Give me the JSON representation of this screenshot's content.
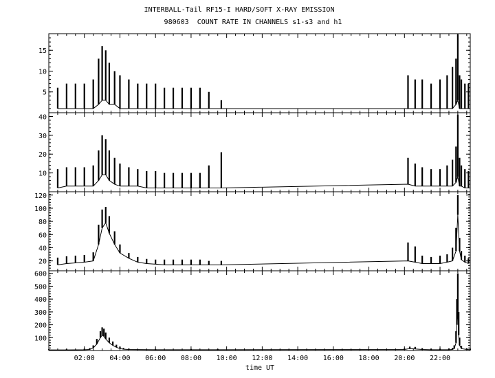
{
  "chart_data": {
    "type": "line",
    "title": "INTERBALL-Tail RF15-I HARD/SOFT X-RAY EMISSION",
    "subtitle": "980603  COUNT RATE IN CHANNELS s1-s3 and h1",
    "xlabel": "time UT",
    "x_unit": "hours UT",
    "xlim": [
      0.0,
      23.7
    ],
    "x_tick_values": [
      2,
      4,
      6,
      8,
      10,
      12,
      14,
      16,
      18,
      20,
      22
    ],
    "x_tick_labels": [
      "02:00",
      "04:00",
      "06:00",
      "08:00",
      "10:00",
      "12:00",
      "14:00",
      "16:00",
      "18:00",
      "20:00",
      "22:00"
    ],
    "panels": [
      {
        "name": "",
        "ylim": [
          0,
          19
        ],
        "yticks": [
          5,
          10,
          15
        ],
        "x": [
          0.5,
          1.0,
          1.5,
          2.0,
          2.5,
          2.8,
          3.0,
          3.2,
          3.4,
          3.7,
          4.0,
          4.5,
          5.0,
          5.5,
          6.0,
          6.5,
          7.0,
          7.5,
          8.0,
          8.5,
          9.0,
          9.7,
          20.2,
          20.6,
          21.0,
          21.5,
          22.0,
          22.4,
          22.7,
          22.9,
          23.0,
          23.1,
          23.2,
          23.4,
          23.6
        ],
        "low": [
          1,
          1,
          1,
          1,
          1,
          2,
          3,
          3,
          2,
          2,
          1,
          1,
          1,
          1,
          1,
          1,
          1,
          1,
          1,
          1,
          1,
          1,
          1,
          1,
          1,
          1,
          1,
          1,
          1,
          2,
          3,
          1,
          1,
          1,
          1
        ],
        "high": [
          6,
          7,
          7,
          7,
          8,
          13,
          16,
          15,
          12,
          10,
          9,
          8,
          7,
          7,
          7,
          6,
          6,
          6,
          6,
          6,
          5,
          3,
          9,
          8,
          8,
          7,
          8,
          9,
          11,
          13,
          19,
          9,
          8,
          7,
          7
        ]
      },
      {
        "name": "",
        "ylim": [
          0,
          42
        ],
        "yticks": [
          10,
          20,
          30,
          40
        ],
        "x": [
          0.5,
          1.0,
          1.5,
          2.0,
          2.5,
          2.8,
          3.0,
          3.2,
          3.4,
          3.7,
          4.0,
          4.5,
          5.0,
          5.5,
          6.0,
          6.5,
          7.0,
          7.5,
          8.0,
          8.5,
          9.0,
          9.7,
          20.2,
          20.6,
          21.0,
          21.5,
          22.0,
          22.4,
          22.7,
          22.9,
          23.0,
          23.1,
          23.2,
          23.4,
          23.6
        ],
        "low": [
          2,
          3,
          3,
          3,
          3,
          6,
          9,
          9,
          6,
          4,
          3,
          3,
          3,
          2,
          2,
          2,
          2,
          2,
          2,
          2,
          2,
          2,
          4,
          3,
          3,
          3,
          3,
          3,
          3,
          5,
          8,
          3,
          3,
          2,
          2
        ],
        "high": [
          12,
          13,
          13,
          13,
          14,
          22,
          30,
          28,
          22,
          18,
          15,
          13,
          12,
          11,
          11,
          10,
          10,
          10,
          10,
          10,
          14,
          21,
          18,
          15,
          13,
          12,
          12,
          14,
          17,
          24,
          41,
          18,
          14,
          12,
          11
        ]
      },
      {
        "name": "",
        "ylim": [
          5,
          125
        ],
        "yticks": [
          20,
          40,
          60,
          80,
          100,
          120
        ],
        "x": [
          0.5,
          1.0,
          1.5,
          2.0,
          2.5,
          2.8,
          3.0,
          3.2,
          3.4,
          3.7,
          4.0,
          4.5,
          5.0,
          5.5,
          6.0,
          6.5,
          7.0,
          7.5,
          8.0,
          8.5,
          9.0,
          9.7,
          20.2,
          20.6,
          21.0,
          21.5,
          22.0,
          22.4,
          22.7,
          22.9,
          23.0,
          23.1,
          23.2,
          23.4,
          23.6
        ],
        "low": [
          14,
          16,
          17,
          18,
          20,
          45,
          70,
          78,
          62,
          45,
          32,
          24,
          18,
          16,
          15,
          14,
          14,
          14,
          14,
          14,
          14,
          14,
          20,
          18,
          16,
          16,
          16,
          18,
          20,
          35,
          90,
          35,
          22,
          18,
          16
        ],
        "high": [
          25,
          27,
          28,
          29,
          33,
          75,
          98,
          102,
          88,
          65,
          45,
          32,
          26,
          23,
          22,
          22,
          22,
          22,
          22,
          22,
          20,
          20,
          48,
          42,
          28,
          26,
          28,
          30,
          40,
          70,
          120,
          55,
          35,
          28,
          24
        ]
      },
      {
        "name": "",
        "ylim": [
          0,
          620
        ],
        "yticks": [
          100,
          200,
          300,
          400,
          500,
          600
        ],
        "x": [
          0.0,
          1.0,
          2.0,
          2.3,
          2.5,
          2.7,
          2.9,
          3.0,
          3.1,
          3.2,
          3.4,
          3.6,
          3.8,
          4.0,
          4.2,
          4.5,
          6.0,
          8.0,
          9.5,
          20.0,
          20.3,
          20.6,
          21.0,
          21.5,
          22.0,
          22.5,
          22.7,
          22.8,
          22.9,
          22.95,
          23.0,
          23.05,
          23.1,
          23.2,
          23.5,
          23.7
        ],
        "low": [
          5,
          5,
          6,
          8,
          20,
          50,
          100,
          120,
          110,
          90,
          60,
          40,
          25,
          15,
          10,
          8,
          6,
          6,
          6,
          8,
          15,
          12,
          8,
          6,
          6,
          6,
          8,
          15,
          60,
          200,
          300,
          120,
          40,
          15,
          8,
          6
        ],
        "high": [
          10,
          12,
          14,
          18,
          40,
          90,
          150,
          180,
          170,
          140,
          100,
          70,
          45,
          30,
          20,
          15,
          12,
          12,
          12,
          16,
          30,
          28,
          18,
          14,
          14,
          16,
          20,
          40,
          150,
          400,
          600,
          300,
          100,
          35,
          18,
          14
        ]
      }
    ],
    "grid": false,
    "legend": "none"
  }
}
